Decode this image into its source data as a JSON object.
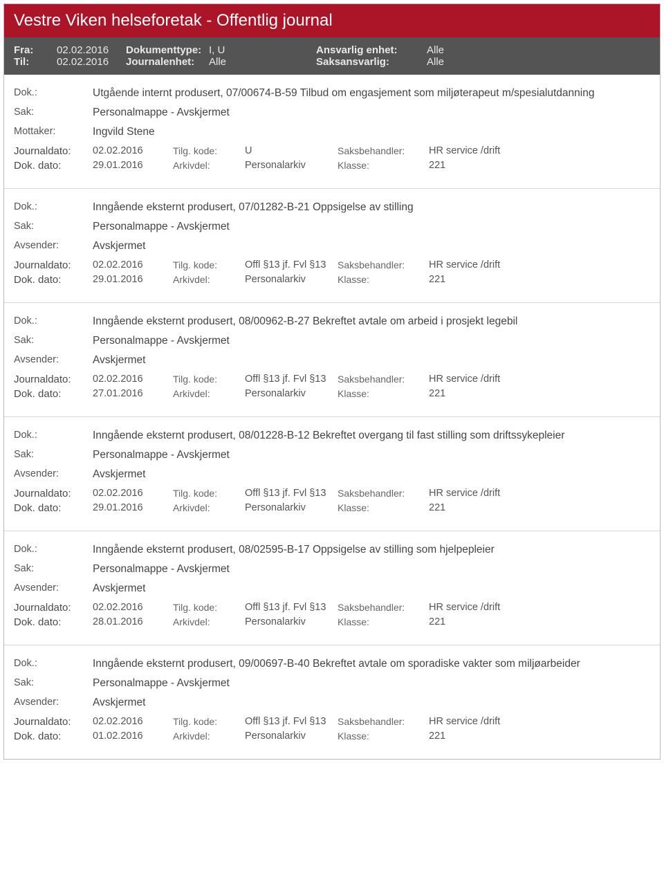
{
  "header": {
    "title": "Vestre Viken helseforetak - Offentlig journal",
    "fra_label": "Fra:",
    "fra_value": "02.02.2016",
    "til_label": "Til:",
    "til_value": "02.02.2016",
    "doktype_label": "Dokumenttype:",
    "doktype_value": "I, U",
    "je_label": "Journalenhet:",
    "je_value": "Alle",
    "ansvarlig_label": "Ansvarlig enhet:",
    "ansvarlig_value": "Alle",
    "saksansvarlig_label": "Saksansvarlig:",
    "saksansvarlig_value": "Alle"
  },
  "labels": {
    "dok": "Dok.:",
    "sak": "Sak:",
    "mottaker": "Mottaker:",
    "avsender": "Avsender:",
    "journaldato": "Journaldato:",
    "dokdato": "Dok. dato:",
    "tilgkode": "Tilg. kode:",
    "arkivdel": "Arkivdel:",
    "saksbehandler": "Saksbehandler:",
    "klasse": "Klasse:"
  },
  "entries": [
    {
      "dok": "Utgående internt produsert, 07/00674-B-59 Tilbud om engasjement som miljøterapeut m/spesialutdanning",
      "sak": "Personalmappe - Avskjermet",
      "party_label_key": "mottaker",
      "party_value": "Ingvild Stene",
      "journaldato": "02.02.2016",
      "tilgkode": "U",
      "saksbehandler": "HR service /drift",
      "dokdato": "29.01.2016",
      "arkivdel": "Personalarkiv",
      "klasse": "221"
    },
    {
      "dok": "Inngående eksternt produsert, 07/01282-B-21 Oppsigelse av stilling",
      "sak": "Personalmappe - Avskjermet",
      "party_label_key": "avsender",
      "party_value": "Avskjermet",
      "journaldato": "02.02.2016",
      "tilgkode": "Offl §13 jf. Fvl §13",
      "saksbehandler": "HR service /drift",
      "dokdato": "29.01.2016",
      "arkivdel": "Personalarkiv",
      "klasse": "221"
    },
    {
      "dok": "Inngående eksternt produsert, 08/00962-B-27 Bekreftet avtale om arbeid i prosjekt legebil",
      "sak": "Personalmappe - Avskjermet",
      "party_label_key": "avsender",
      "party_value": "Avskjermet",
      "journaldato": "02.02.2016",
      "tilgkode": "Offl §13 jf. Fvl §13",
      "saksbehandler": "HR service /drift",
      "dokdato": "27.01.2016",
      "arkivdel": "Personalarkiv",
      "klasse": "221"
    },
    {
      "dok": "Inngående eksternt produsert, 08/01228-B-12 Bekreftet overgang til fast stilling som driftssykepleier",
      "sak": "Personalmappe - Avskjermet",
      "party_label_key": "avsender",
      "party_value": "Avskjermet",
      "journaldato": "02.02.2016",
      "tilgkode": "Offl §13 jf. Fvl §13",
      "saksbehandler": "HR service /drift",
      "dokdato": "29.01.2016",
      "arkivdel": "Personalarkiv",
      "klasse": "221"
    },
    {
      "dok": "Inngående eksternt produsert, 08/02595-B-17 Oppsigelse av stilling som hjelpepleier",
      "sak": "Personalmappe - Avskjermet",
      "party_label_key": "avsender",
      "party_value": "Avskjermet",
      "journaldato": "02.02.2016",
      "tilgkode": "Offl §13 jf. Fvl §13",
      "saksbehandler": "HR service /drift",
      "dokdato": "28.01.2016",
      "arkivdel": "Personalarkiv",
      "klasse": "221"
    },
    {
      "dok": "Inngående eksternt produsert, 09/00697-B-40 Bekreftet avtale om sporadiske vakter som miljøarbeider",
      "sak": "Personalmappe - Avskjermet",
      "party_label_key": "avsender",
      "party_value": "Avskjermet",
      "journaldato": "02.02.2016",
      "tilgkode": "Offl §13 jf. Fvl §13",
      "saksbehandler": "HR service /drift",
      "dokdato": "01.02.2016",
      "arkivdel": "Personalarkiv",
      "klasse": "221"
    }
  ]
}
